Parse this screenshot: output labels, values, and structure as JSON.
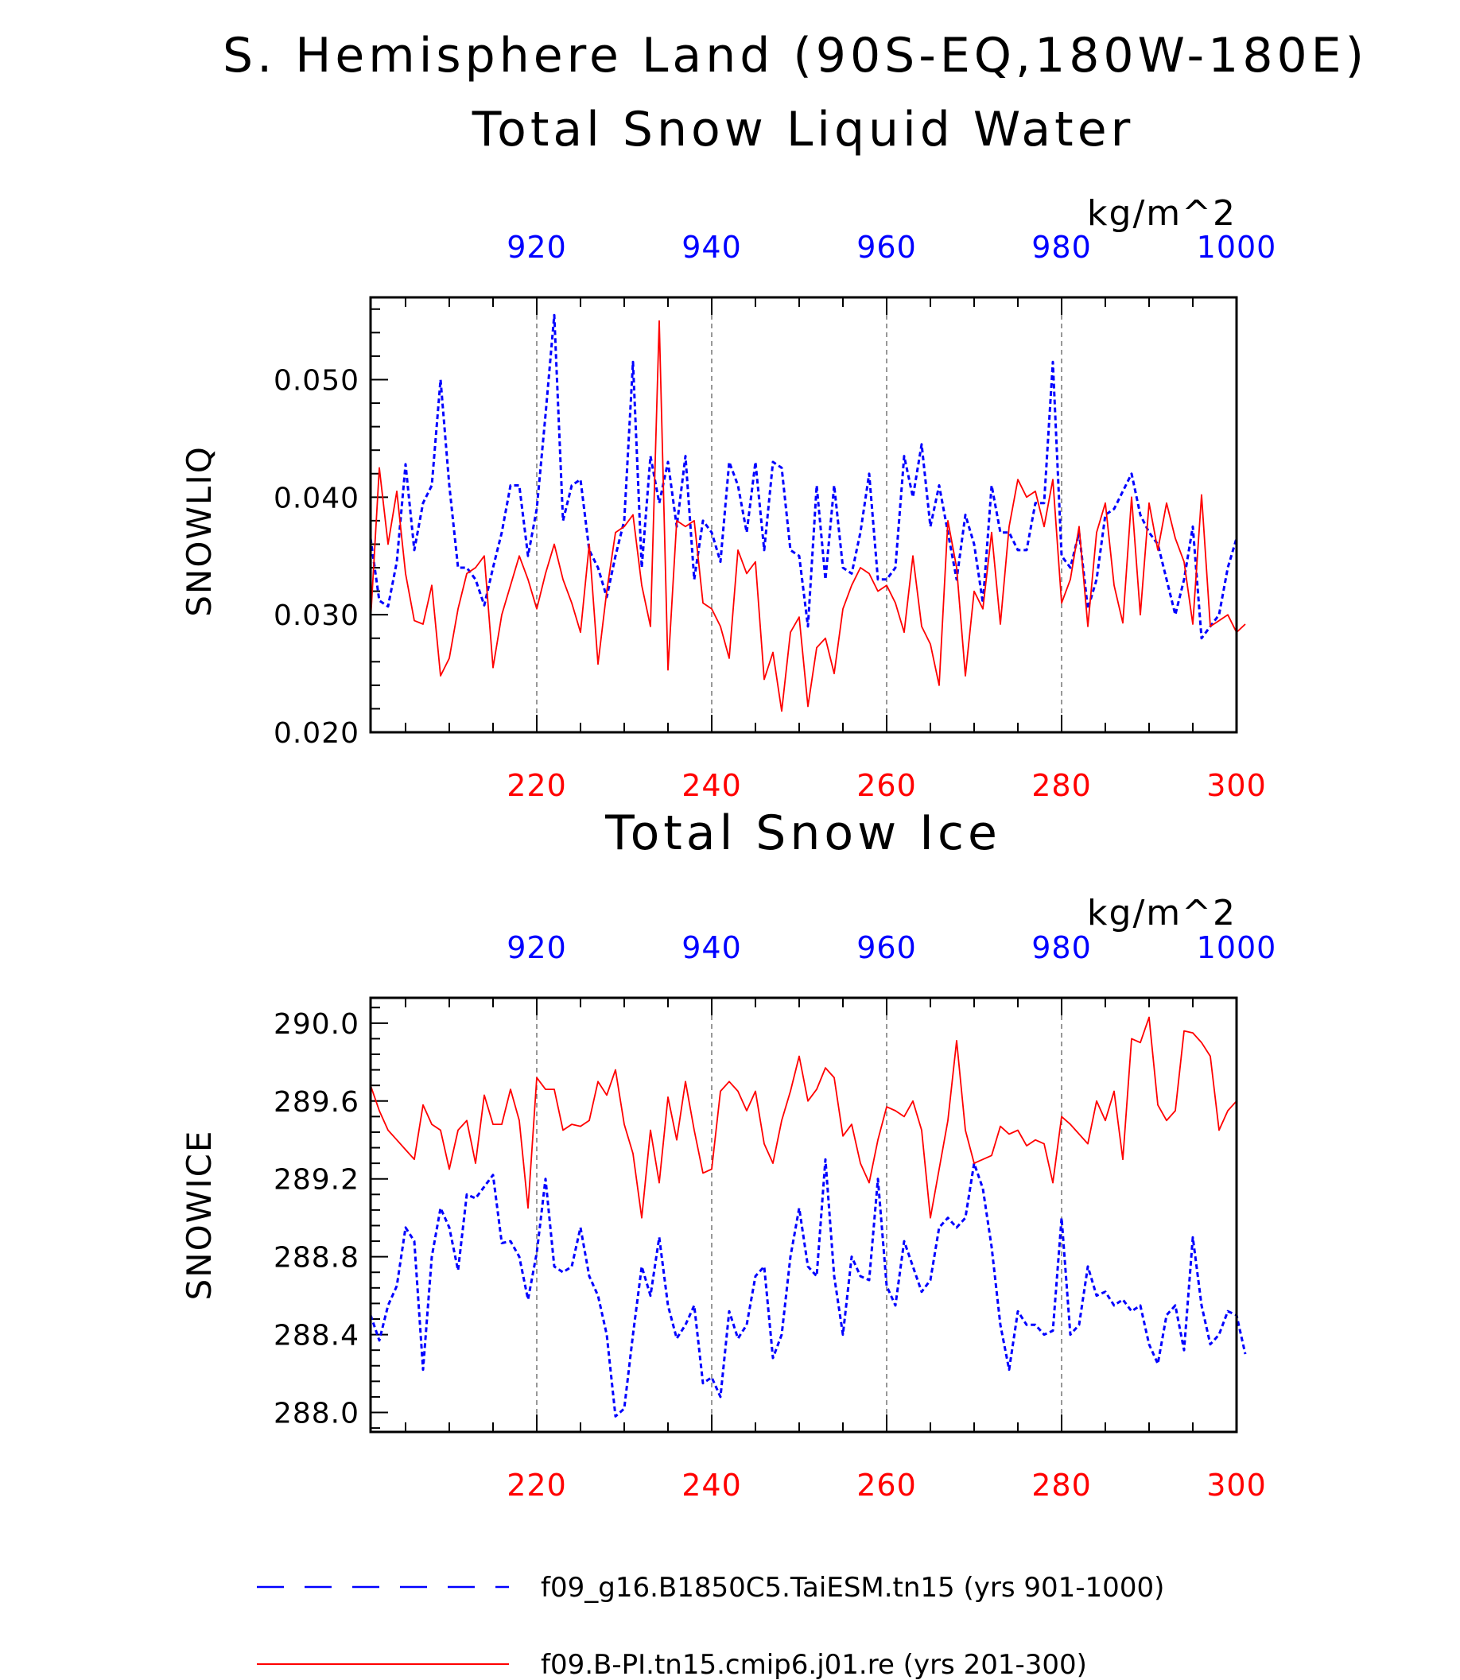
{
  "figure": {
    "title_line1": "S. Hemisphere Land (90S-EQ,180W-180E)",
    "legend": [
      {
        "label": "f09_g16.B1850C5.TaiESM.tn15 (yrs 901-1000)",
        "color": "#0000ff",
        "style": "dashed"
      },
      {
        "label": "f09.B-PI.tn15.cmip6.j01.re (yrs 201-300)",
        "color": "#ff0000",
        "style": "solid"
      }
    ]
  },
  "chart_data": [
    {
      "type": "line",
      "title": "Total Snow Liquid Water",
      "units": "kg/m^2",
      "ylabel": "SNOWLIQ",
      "ylim": [
        0.02,
        0.057
      ],
      "yticks": [
        0.02,
        0.03,
        0.04,
        0.05
      ],
      "ytick_labels": [
        "0.020",
        "0.030",
        "0.040",
        "0.050"
      ],
      "grid": "vertical dashed at labeled x ticks",
      "top_axis": {
        "range": [
          901,
          1000
        ],
        "ticks": [
          920,
          940,
          960,
          980,
          1000
        ],
        "color": "#0000ff"
      },
      "bottom_axis": {
        "range": [
          201,
          300
        ],
        "ticks": [
          220,
          240,
          260,
          280,
          300
        ],
        "color": "#ff0000"
      },
      "series": [
        {
          "axis": "top",
          "color": "#0000ff",
          "style": "dashed",
          "x_start": 901,
          "values": [
            0.0365,
            0.0312,
            0.0307,
            0.0345,
            0.0428,
            0.0355,
            0.0395,
            0.041,
            0.05,
            0.041,
            0.034,
            0.034,
            0.033,
            0.0308,
            0.034,
            0.037,
            0.041,
            0.041,
            0.035,
            0.039,
            0.047,
            0.0555,
            0.038,
            0.041,
            0.0415,
            0.0355,
            0.034,
            0.0315,
            0.035,
            0.038,
            0.0515,
            0.034,
            0.0435,
            0.0395,
            0.043,
            0.0375,
            0.0435,
            0.033,
            0.038,
            0.037,
            0.0345,
            0.043,
            0.041,
            0.037,
            0.043,
            0.0355,
            0.043,
            0.0425,
            0.0355,
            0.035,
            0.029,
            0.041,
            0.033,
            0.041,
            0.034,
            0.0335,
            0.037,
            0.042,
            0.033,
            0.033,
            0.034,
            0.0435,
            0.04,
            0.0445,
            0.0375,
            0.041,
            0.037,
            0.033,
            0.0385,
            0.036,
            0.031,
            0.041,
            0.037,
            0.037,
            0.0355,
            0.0355,
            0.0395,
            0.0395,
            0.0515,
            0.035,
            0.034,
            0.037,
            0.0305,
            0.033,
            0.0385,
            0.039,
            0.0405,
            0.042,
            0.0385,
            0.037,
            0.036,
            0.033,
            0.03,
            0.033,
            0.0375,
            0.028,
            0.029,
            0.03,
            0.034,
            0.0365
          ]
        },
        {
          "axis": "bottom",
          "color": "#ff0000",
          "style": "solid",
          "x_start": 201,
          "values": [
            0.0295,
            0.0425,
            0.036,
            0.0405,
            0.0335,
            0.0295,
            0.0292,
            0.0325,
            0.0248,
            0.0263,
            0.0305,
            0.0335,
            0.034,
            0.035,
            0.0255,
            0.03,
            0.0325,
            0.035,
            0.033,
            0.0305,
            0.0335,
            0.036,
            0.033,
            0.031,
            0.0285,
            0.036,
            0.0258,
            0.032,
            0.037,
            0.0375,
            0.0385,
            0.0325,
            0.029,
            0.055,
            0.0253,
            0.038,
            0.0375,
            0.038,
            0.031,
            0.0305,
            0.029,
            0.0263,
            0.0355,
            0.0335,
            0.0345,
            0.0245,
            0.0268,
            0.0218,
            0.0285,
            0.0298,
            0.0222,
            0.0272,
            0.028,
            0.025,
            0.0305,
            0.0325,
            0.034,
            0.0335,
            0.032,
            0.0325,
            0.031,
            0.0285,
            0.035,
            0.029,
            0.0275,
            0.024,
            0.038,
            0.034,
            0.0248,
            0.032,
            0.0305,
            0.037,
            0.0292,
            0.0375,
            0.0415,
            0.04,
            0.0405,
            0.0375,
            0.0415,
            0.031,
            0.033,
            0.0375,
            0.029,
            0.037,
            0.0395,
            0.0325,
            0.0293,
            0.04,
            0.03,
            0.0395,
            0.0355,
            0.0395,
            0.0365,
            0.0345,
            0.0292,
            0.0402,
            0.029,
            0.0295,
            0.03,
            0.0285,
            0.0292
          ]
        }
      ]
    },
    {
      "type": "line",
      "title": "Total Snow Ice",
      "units": "kg/m^2",
      "ylabel": "SNOWICE",
      "ylim": [
        287.9,
        290.13
      ],
      "yticks": [
        288.0,
        288.4,
        288.8,
        289.2,
        289.6,
        290.0
      ],
      "ytick_labels": [
        "288.0",
        "288.4",
        "288.8",
        "289.2",
        "289.6",
        "290.0"
      ],
      "grid": "vertical dashed at labeled x ticks",
      "top_axis": {
        "range": [
          901,
          1000
        ],
        "ticks": [
          920,
          940,
          960,
          980,
          1000
        ],
        "color": "#0000ff"
      },
      "bottom_axis": {
        "range": [
          201,
          300
        ],
        "ticks": [
          220,
          240,
          260,
          280,
          300
        ],
        "color": "#ff0000"
      },
      "series": [
        {
          "axis": "top",
          "color": "#0000ff",
          "style": "dashed",
          "x_start": 901,
          "values": [
            288.5,
            288.37,
            288.55,
            288.65,
            288.95,
            288.88,
            288.22,
            288.8,
            289.05,
            288.95,
            288.73,
            289.12,
            289.1,
            289.16,
            289.22,
            288.87,
            288.88,
            288.8,
            288.58,
            288.82,
            289.2,
            288.75,
            288.72,
            288.75,
            288.95,
            288.7,
            288.6,
            288.4,
            287.98,
            288.02,
            288.4,
            288.75,
            288.6,
            288.9,
            288.55,
            288.38,
            288.45,
            288.55,
            288.15,
            288.18,
            288.08,
            288.52,
            288.38,
            288.45,
            288.7,
            288.75,
            288.28,
            288.4,
            288.8,
            289.05,
            288.75,
            288.7,
            289.3,
            288.7,
            288.4,
            288.8,
            288.7,
            288.68,
            289.2,
            288.65,
            288.55,
            288.88,
            288.75,
            288.62,
            288.68,
            288.95,
            289.0,
            288.95,
            289.0,
            289.28,
            289.15,
            288.85,
            288.45,
            288.22,
            288.52,
            288.45,
            288.45,
            288.4,
            288.42,
            289.0,
            288.4,
            288.45,
            288.75,
            288.6,
            288.62,
            288.55,
            288.58,
            288.52,
            288.55,
            288.35,
            288.25,
            288.5,
            288.55,
            288.32,
            288.9,
            288.55,
            288.35,
            288.4,
            288.52,
            288.5,
            288.3
          ]
        },
        {
          "axis": "bottom",
          "color": "#ff0000",
          "style": "solid",
          "x_start": 201,
          "values": [
            289.68,
            289.55,
            289.45,
            289.4,
            289.35,
            289.3,
            289.58,
            289.48,
            289.45,
            289.25,
            289.45,
            289.5,
            289.28,
            289.63,
            289.48,
            289.48,
            289.66,
            289.5,
            289.05,
            289.72,
            289.66,
            289.66,
            289.45,
            289.48,
            289.47,
            289.5,
            289.7,
            289.63,
            289.76,
            289.48,
            289.33,
            289.0,
            289.45,
            289.18,
            289.62,
            289.4,
            289.7,
            289.45,
            289.23,
            289.25,
            289.65,
            289.7,
            289.65,
            289.55,
            289.65,
            289.38,
            289.28,
            289.5,
            289.65,
            289.83,
            289.6,
            289.66,
            289.77,
            289.72,
            289.42,
            289.48,
            289.28,
            289.18,
            289.4,
            289.57,
            289.55,
            289.52,
            289.6,
            289.45,
            289.0,
            289.25,
            289.5,
            289.91,
            289.45,
            289.28,
            289.3,
            289.32,
            289.47,
            289.43,
            289.45,
            289.37,
            289.4,
            289.38,
            289.18,
            289.52,
            289.48,
            289.43,
            289.38,
            289.6,
            289.5,
            289.65,
            289.3,
            289.92,
            289.9,
            290.03,
            289.58,
            289.5,
            289.55,
            289.96,
            289.95,
            289.9,
            289.83,
            289.45,
            289.55,
            289.6
          ]
        }
      ]
    }
  ]
}
